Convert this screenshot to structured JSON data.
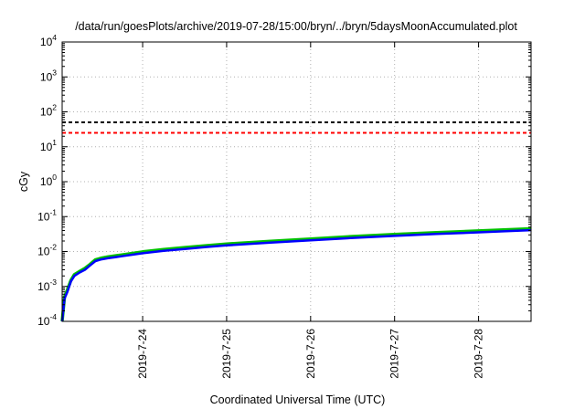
{
  "chart_data": {
    "type": "line",
    "title": "/data/run/goesPlots/archive/2019-07-28/15:00/bryn/../bryn/5daysMoonAccumulated.plot",
    "xlabel": "Coordinated Universal Time (UTC)",
    "ylabel": "cGy",
    "y_scale": "log",
    "ylim": [
      0.0001,
      10000
    ],
    "y_ticks": [
      {
        "base": "10",
        "exp": "-4",
        "value": 0.0001
      },
      {
        "base": "10",
        "exp": "-3",
        "value": 0.001
      },
      {
        "base": "10",
        "exp": "-2",
        "value": 0.01
      },
      {
        "base": "10",
        "exp": "-1",
        "value": 0.1
      },
      {
        "base": "10",
        "exp": "0",
        "value": 1
      },
      {
        "base": "10",
        "exp": "1",
        "value": 10
      },
      {
        "base": "10",
        "exp": "2",
        "value": 100
      },
      {
        "base": "10",
        "exp": "3",
        "value": 1000
      },
      {
        "base": "10",
        "exp": "4",
        "value": 10000
      }
    ],
    "xlim": [
      "2019-07-23 01:00",
      "2019-07-28 15:00"
    ],
    "x_ticks": [
      "2019-7-24",
      "2019-7-25",
      "2019-7-26",
      "2019-7-27",
      "2019-7-28"
    ],
    "grid": true,
    "reference_lines": [
      {
        "value": 50,
        "color": "#000000",
        "style": "dashed"
      },
      {
        "value": 25,
        "color": "#ff0000",
        "style": "dashed"
      }
    ],
    "series": [
      {
        "color": "#00c000",
        "x": [
          "2019-07-23 01:00",
          "2019-07-23 01:40",
          "2019-07-23 02:30",
          "2019-07-23 03:30",
          "2019-07-23 04:30",
          "2019-07-23 06:00",
          "2019-07-23 07:30",
          "2019-07-23 09:00",
          "2019-07-23 10:30",
          "2019-07-23 12:00",
          "2019-07-23 14:00",
          "2019-07-23 18:00",
          "2019-07-24 00:00",
          "2019-07-24 06:00",
          "2019-07-24 12:00",
          "2019-07-24 18:00",
          "2019-07-25 00:00",
          "2019-07-25 12:00",
          "2019-07-26 00:00",
          "2019-07-26 12:00",
          "2019-07-27 00:00",
          "2019-07-27 12:00",
          "2019-07-28 00:00",
          "2019-07-28 15:00"
        ],
        "values": [
          0.0001,
          0.0005,
          0.0008,
          0.0015,
          0.0022,
          0.0027,
          0.0033,
          0.0043,
          0.0058,
          0.0064,
          0.007,
          0.008,
          0.0098,
          0.0115,
          0.013,
          0.0147,
          0.0165,
          0.0195,
          0.023,
          0.027,
          0.031,
          0.035,
          0.039,
          0.045
        ]
      },
      {
        "color": "#0000ff",
        "x": [
          "2019-07-23 01:00",
          "2019-07-23 01:40",
          "2019-07-23 02:30",
          "2019-07-23 03:30",
          "2019-07-23 04:30",
          "2019-07-23 06:00",
          "2019-07-23 07:30",
          "2019-07-23 09:00",
          "2019-07-23 10:30",
          "2019-07-23 12:00",
          "2019-07-23 14:00",
          "2019-07-23 18:00",
          "2019-07-24 00:00",
          "2019-07-24 06:00",
          "2019-07-24 12:00",
          "2019-07-24 18:00",
          "2019-07-25 00:00",
          "2019-07-25 12:00",
          "2019-07-26 00:00",
          "2019-07-26 12:00",
          "2019-07-27 00:00",
          "2019-07-27 12:00",
          "2019-07-28 00:00",
          "2019-07-28 15:00"
        ],
        "values": [
          0.0001,
          0.00045,
          0.0007,
          0.0014,
          0.002,
          0.0025,
          0.003,
          0.004,
          0.0053,
          0.0059,
          0.0064,
          0.0073,
          0.0089,
          0.0105,
          0.0118,
          0.0134,
          0.015,
          0.0178,
          0.0209,
          0.0245,
          0.028,
          0.0318,
          0.0355,
          0.041
        ]
      }
    ]
  }
}
